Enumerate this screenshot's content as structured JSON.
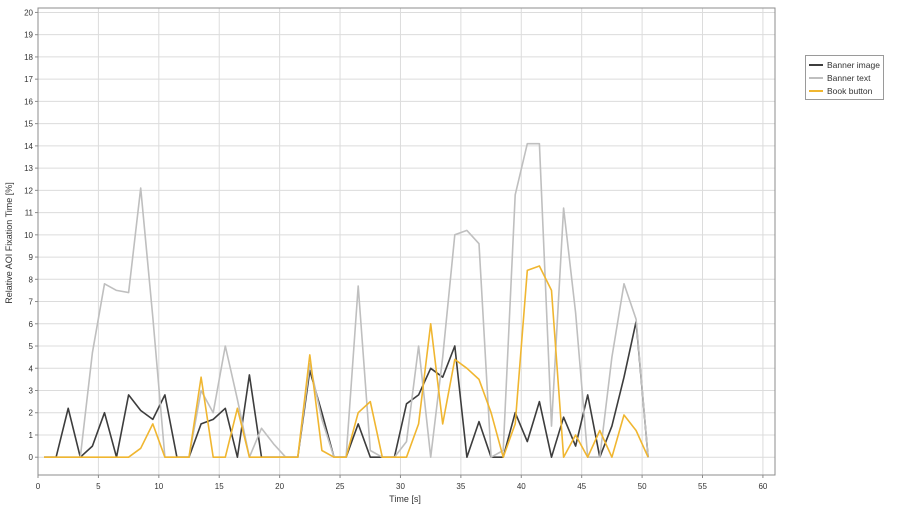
{
  "chart_data": {
    "type": "line",
    "title": "",
    "xlabel": "Time [s]",
    "ylabel": "Relative AOI Fixation Time [%]",
    "xlim": [
      0,
      61
    ],
    "ylim": [
      -0.8,
      20.2
    ],
    "x_ticks": [
      0,
      5,
      10,
      15,
      20,
      25,
      30,
      35,
      40,
      45,
      50,
      55,
      60
    ],
    "y_ticks": [
      0,
      1,
      2,
      3,
      4,
      5,
      6,
      7,
      8,
      9,
      10,
      11,
      12,
      13,
      14,
      15,
      16,
      17,
      18,
      19,
      20
    ],
    "grid": true,
    "legend_position": "right",
    "x": [
      0.5,
      1.5,
      2.5,
      3.5,
      4.5,
      5.5,
      6.5,
      7.5,
      8.5,
      9.5,
      10.5,
      11.5,
      12.5,
      13.5,
      14.5,
      15.5,
      16.5,
      17.5,
      18.5,
      19.5,
      20.5,
      21.5,
      22.5,
      23.5,
      24.5,
      25.5,
      26.5,
      27.5,
      28.5,
      29.5,
      30.5,
      31.5,
      32.5,
      33.5,
      34.5,
      35.5,
      36.5,
      37.5,
      38.5,
      39.5,
      40.5,
      41.5,
      42.5,
      43.5,
      44.5,
      45.5,
      46.5,
      47.5,
      48.5,
      49.5,
      50.5
    ],
    "series": [
      {
        "name": "Banner image",
        "color": "#3d3d3d",
        "values": [
          0,
          0,
          2.2,
          0,
          0.5,
          2,
          0,
          2.8,
          2.1,
          1.7,
          2.8,
          0,
          0,
          1.5,
          1.7,
          2.2,
          0,
          3.7,
          0,
          0,
          0,
          0,
          3.9,
          2,
          0,
          0,
          1.5,
          0,
          0,
          0,
          2.4,
          2.8,
          4,
          3.6,
          5,
          0,
          1.6,
          0,
          0,
          2,
          0.7,
          2.5,
          0,
          1.8,
          0.5,
          2.8,
          0,
          1.4,
          3.6,
          6.1,
          0
        ]
      },
      {
        "name": "Banner text",
        "color": "#bfbfbf",
        "values": [
          0,
          0,
          0,
          0,
          4.7,
          7.8,
          7.5,
          7.4,
          12.1,
          6.3,
          0,
          0,
          0,
          3,
          2,
          5,
          2.6,
          0,
          1.3,
          0.6,
          0,
          0,
          4.2,
          1.7,
          0,
          0,
          7.7,
          0.3,
          0,
          0,
          0.7,
          5,
          0,
          4.5,
          10,
          10.2,
          9.6,
          0,
          0.3,
          11.8,
          14.1,
          14.1,
          1.4,
          11.2,
          6.5,
          0,
          0,
          4.5,
          7.8,
          6.2,
          0
        ]
      },
      {
        "name": "Book button",
        "color": "#f0b630",
        "values": [
          0,
          0,
          0,
          0,
          0,
          0,
          0,
          0,
          0.4,
          1.5,
          0,
          0,
          0,
          3.6,
          0,
          0,
          2.2,
          0,
          0,
          0,
          0,
          0,
          4.6,
          0.3,
          0,
          0,
          2,
          2.5,
          0,
          0,
          0,
          1.5,
          6,
          1.5,
          4.4,
          4,
          3.5,
          2,
          0,
          1.5,
          8.4,
          8.6,
          7.5,
          0,
          1,
          0,
          1.2,
          0,
          1.9,
          1.2,
          0
        ]
      }
    ]
  }
}
